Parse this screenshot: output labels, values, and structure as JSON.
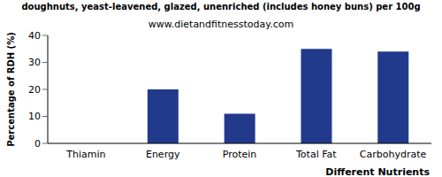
{
  "chart_data": {
    "type": "bar",
    "title": "doughnuts, yeast-leavened, glazed, unenriched (includes honey buns) per 100g",
    "subtitle": "www.dietandfitnesstoday.com",
    "x_label": "Different Nutrients",
    "y_label": "Percentage of RDH (%)",
    "categories": [
      "Thiamin",
      "Energy",
      "Protein",
      "Total Fat",
      "Carbohydrate"
    ],
    "values": [
      0,
      20,
      11,
      35,
      34
    ],
    "color": "#223a8c",
    "ylim": [
      0,
      40
    ],
    "yticks": [
      0,
      10,
      20,
      30,
      40
    ],
    "grid": false
  }
}
